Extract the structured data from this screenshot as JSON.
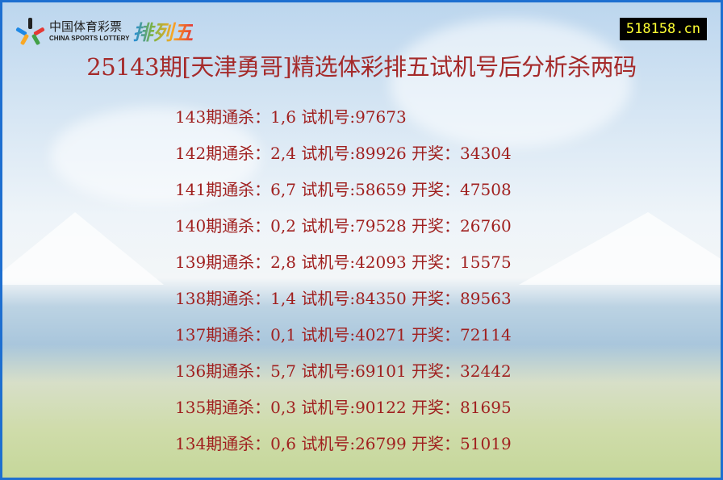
{
  "logo": {
    "cn": "中国体育彩票",
    "en": "CHINA SPORTS LOTTERY",
    "game": "排列五"
  },
  "site_badge": "518158.cn",
  "title": "25143期[天津勇哥]精选体彩排五试机号后分析杀两码",
  "rows": [
    "143期通杀：1,6 试机号:97673",
    "142期通杀：2,4 试机号:89926 开奖：34304",
    "141期通杀：6,7 试机号:58659 开奖：47508",
    "140期通杀：0,2 试机号:79528 开奖：26760",
    "139期通杀：2,8 试机号:42093 开奖：15575",
    "138期通杀：1,4 试机号:84350 开奖：89563",
    "137期通杀：0,1 试机号:40271 开奖：72114",
    "136期通杀：5,7 试机号:69101 开奖：32442",
    "135期通杀：0,3 试机号:90122 开奖：81695",
    "134期通杀：0,6 试机号:26799 开奖：51019"
  ],
  "colors": {
    "text": "#a0201f",
    "border": "#1e6fd0",
    "badge_bg": "#000000",
    "badge_text": "#ffff33"
  }
}
